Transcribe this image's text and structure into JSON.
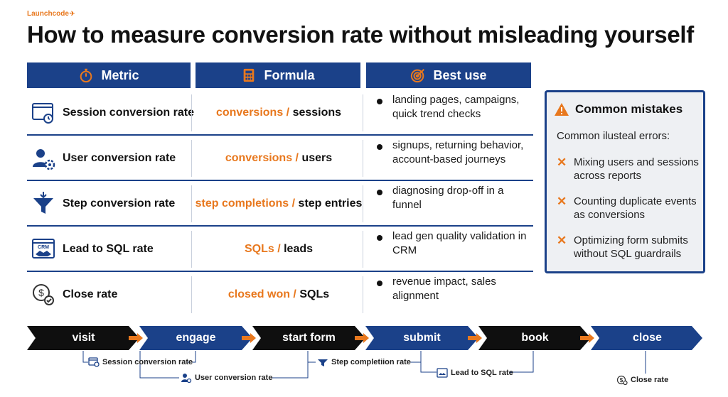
{
  "brand": {
    "name": "Launchcode",
    "mark": "✈"
  },
  "title": "How to measure conversion rate without misleading yourself",
  "columns": [
    {
      "label": "Metric",
      "icon": "stopwatch-icon"
    },
    {
      "label": "Formula",
      "icon": "calculator-icon"
    },
    {
      "label": "Best use",
      "icon": "target-icon"
    }
  ],
  "rows": [
    {
      "metric": "Session conversion rate",
      "icon": "browser-clock-icon",
      "numerator": "conversions",
      "denominator": "sessions",
      "best_use": "landing pages, campaigns, quick trend checks"
    },
    {
      "metric": "User conversion rate",
      "icon": "user-gear-icon",
      "numerator": "conversions",
      "denominator": "users",
      "best_use": "signups, returning behavior, account-based journeys"
    },
    {
      "metric": "Step conversion rate",
      "icon": "funnel-icon",
      "numerator": "step completions",
      "denominator": "step entries",
      "best_use": "diagnosing drop-off in a funnel"
    },
    {
      "metric": "Lead to SQL rate",
      "icon": "crm-handshake-icon",
      "numerator": "SQLs",
      "denominator": "leads",
      "best_use": "lead gen quality validation in CRM"
    },
    {
      "metric": "Close rate",
      "icon": "dollar-check-icon",
      "numerator": "closed won",
      "denominator": "SQLs",
      "best_use": "revenue impact, sales alignment"
    }
  ],
  "formula_separator": " / ",
  "mistakes": {
    "title": "Common mistakes",
    "subtitle": "Common ilusteal errors:",
    "mark": "✕",
    "items": [
      "Mixing users and sessions across reports",
      "Counting duplicate events as conversions",
      "Optimizing form submits without SQL guardrails"
    ]
  },
  "funnel_steps": [
    "visit",
    "engage",
    "start form",
    "submit",
    "book",
    "close"
  ],
  "funnel_captions": [
    "Session conversion rate",
    "User conversion rate",
    "Step completiion rate",
    "Lead to SQL rate",
    "Close rate"
  ],
  "colors": {
    "navy": "#1b4189",
    "black": "#0f0f0f",
    "orange": "#e8781e"
  }
}
